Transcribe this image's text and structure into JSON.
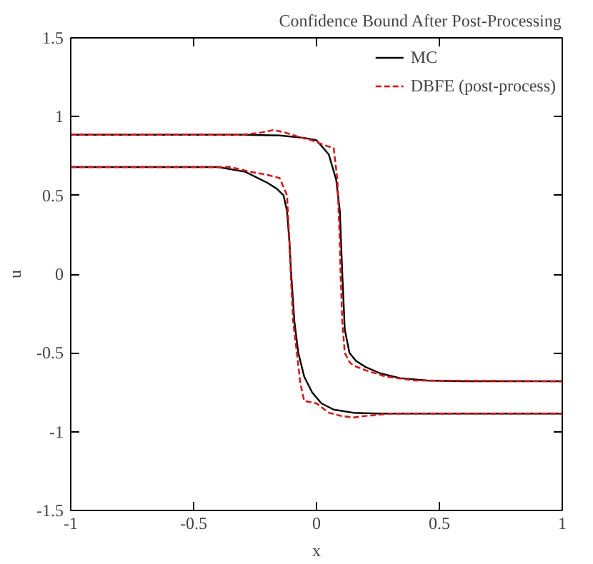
{
  "chart_data": {
    "type": "line",
    "title": "Confidence Bound After Post-Processing",
    "xlabel": "x",
    "ylabel": "u",
    "xlim": [
      -1,
      1
    ],
    "ylim": [
      -1.5,
      1.5
    ],
    "xticks": [
      -1,
      -0.5,
      0,
      0.5,
      1
    ],
    "yticks": [
      -1.5,
      -1,
      -0.5,
      0,
      0.5,
      1,
      1.5
    ],
    "grid": false,
    "legend": "top right",
    "series": [
      {
        "name": "MC",
        "color": "#000000",
        "line_style": "solid",
        "x": [
          -1,
          -0.3,
          -0.15,
          -0.05,
          0.0,
          0.05,
          0.08,
          0.095,
          0.105,
          0.115,
          0.134,
          0.16,
          0.2,
          0.26,
          0.34,
          0.45,
          0.6,
          1
        ],
        "values": [
          0.885,
          0.885,
          0.88,
          0.865,
          0.85,
          0.76,
          0.6,
          0.4,
          0.0,
          -0.35,
          -0.5,
          -0.55,
          -0.59,
          -0.63,
          -0.66,
          -0.675,
          -0.68,
          -0.68
        ]
      },
      {
        "color": "#000000",
        "line_style": "solid",
        "x": [
          -1,
          -0.4,
          -0.29,
          -0.2,
          -0.16,
          -0.134,
          -0.12,
          -0.11,
          -0.103,
          -0.09,
          -0.074,
          -0.05,
          -0.018,
          0.02,
          0.07,
          0.15,
          0.25,
          1
        ],
        "values": [
          0.68,
          0.68,
          0.65,
          0.58,
          0.54,
          0.5,
          0.4,
          0.2,
          0.0,
          -0.3,
          -0.5,
          -0.65,
          -0.75,
          -0.82,
          -0.86,
          -0.88,
          -0.885,
          -0.885
        ]
      },
      {
        "name": "DBFE (post-process)",
        "color": "#ff0000",
        "line_style": "dashed",
        "x": [
          -1,
          -0.3,
          -0.22,
          -0.175,
          -0.13,
          -0.07,
          -0.02,
          0.03,
          0.07,
          0.085,
          0.095,
          0.098,
          0.105,
          0.115,
          0.135,
          0.15,
          0.2,
          0.28,
          0.4,
          1
        ],
        "values": [
          0.885,
          0.885,
          0.9,
          0.915,
          0.9,
          0.87,
          0.85,
          0.82,
          0.8,
          0.6,
          0.2,
          0.0,
          -0.3,
          -0.5,
          -0.56,
          -0.58,
          -0.61,
          -0.65,
          -0.675,
          -0.68
        ]
      },
      {
        "color": "#ff0000",
        "line_style": "dashed",
        "x": [
          -1,
          -0.35,
          -0.27,
          -0.2,
          -0.15,
          -0.12,
          -0.11,
          -0.105,
          -0.095,
          -0.08,
          -0.065,
          -0.05,
          0.0,
          0.05,
          0.1,
          0.15,
          0.2,
          0.3,
          1
        ],
        "values": [
          0.68,
          0.68,
          0.65,
          0.63,
          0.61,
          0.5,
          0.2,
          0.0,
          -0.3,
          -0.5,
          -0.7,
          -0.805,
          -0.82,
          -0.88,
          -0.9,
          -0.91,
          -0.9,
          -0.885,
          -0.885
        ]
      }
    ]
  }
}
